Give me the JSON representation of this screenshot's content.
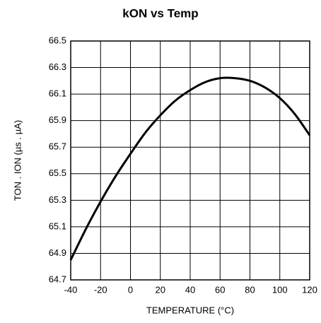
{
  "chart_data": {
    "type": "line",
    "title": "kON vs Temp",
    "xlabel": "TEMPERATURE (°C)",
    "ylabel": "TON . ION (µs . µA)",
    "x": [
      -40,
      -30,
      -20,
      -10,
      0,
      10,
      20,
      30,
      40,
      50,
      60,
      70,
      80,
      90,
      100,
      110,
      120
    ],
    "series": [
      {
        "color": "#000000",
        "values": [
          64.85,
          65.08,
          65.29,
          65.48,
          65.65,
          65.81,
          65.94,
          66.05,
          66.13,
          66.19,
          66.22,
          66.22,
          66.2,
          66.15,
          66.07,
          65.95,
          65.79
        ]
      }
    ],
    "xlim": [
      -40,
      120
    ],
    "xticks": [
      -40,
      -20,
      0,
      20,
      40,
      60,
      80,
      100,
      120
    ],
    "ylim": [
      64.7,
      66.5
    ],
    "yticks": [
      64.7,
      64.9,
      65.1,
      65.3,
      65.5,
      65.7,
      65.9,
      66.1,
      66.3,
      66.5
    ],
    "grid": true
  }
}
